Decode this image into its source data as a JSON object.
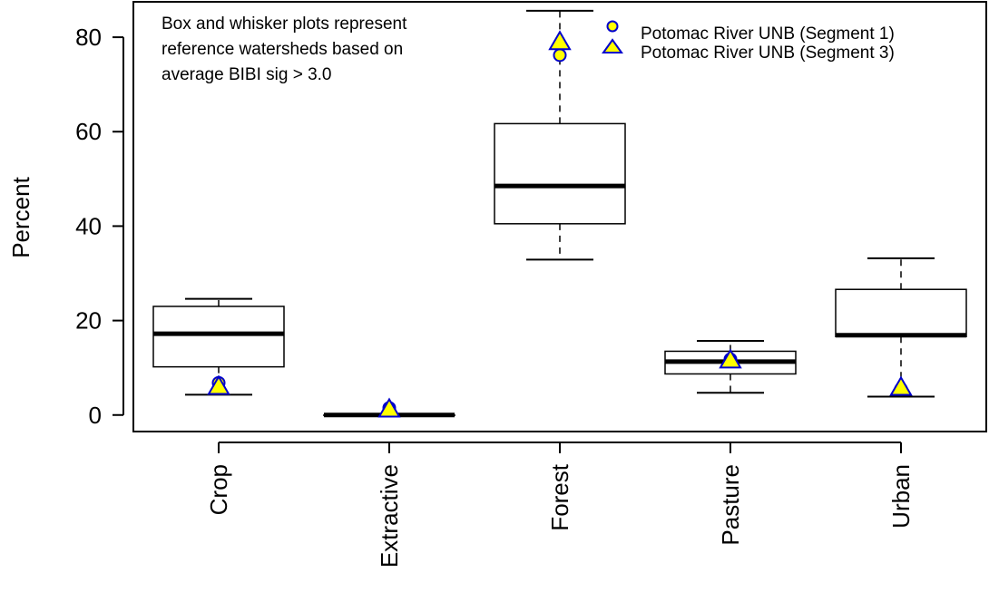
{
  "chart_data": {
    "type": "boxplot",
    "ylabel": "Percent",
    "xlabel": "",
    "ylim": [
      -3.5,
      87.5
    ],
    "yticks": [
      0,
      20,
      40,
      60,
      80
    ],
    "annotation": [
      "Box and whisker plots represent",
      "reference watersheds based on",
      "average BIBI sig > 3.0"
    ],
    "categories": [
      "Crop",
      "Extractive",
      "Forest",
      "Pasture",
      "Urban"
    ],
    "boxes": [
      {
        "category": "Crop",
        "whisker_low": 4.3,
        "q1": 10.2,
        "median": 17.2,
        "q3": 23.0,
        "whisker_high": 24.6
      },
      {
        "category": "Extractive",
        "whisker_low": 0.0,
        "q1": 0.0,
        "median": 0.0,
        "q3": 0.0,
        "whisker_high": 0.0
      },
      {
        "category": "Forest",
        "whisker_low": 32.9,
        "q1": 40.5,
        "median": 48.5,
        "q3": 61.7,
        "whisker_high": 85.6
      },
      {
        "category": "Pasture",
        "whisker_low": 4.7,
        "q1": 8.7,
        "median": 11.3,
        "q3": 13.5,
        "whisker_high": 15.7
      },
      {
        "category": "Urban",
        "whisker_low": 3.9,
        "q1": 16.6,
        "median": 16.9,
        "q3": 26.6,
        "whisker_high": 33.2
      }
    ],
    "series": [
      {
        "name": "Potomac River UNB (Segment 1)",
        "marker": "circle",
        "values": [
          6.8,
          1.5,
          76.2,
          11.8,
          5.5
        ]
      },
      {
        "name": "Potomac River UNB (Segment 3)",
        "marker": "triangle",
        "values": [
          6.0,
          1.2,
          79.0,
          11.6,
          5.8
        ]
      }
    ],
    "marker_fill": "#ffff00",
    "marker_stroke": "#0000cc",
    "legend_position": "top-right",
    "grid": false
  }
}
